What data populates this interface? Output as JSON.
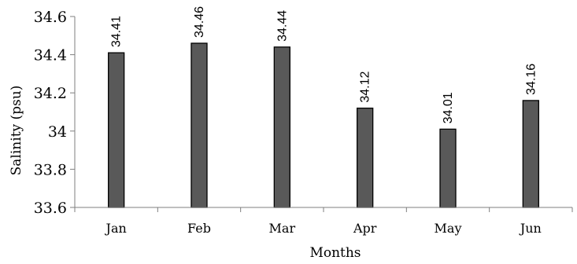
{
  "chart_data": {
    "type": "bar",
    "categories": [
      "Jan",
      "Feb",
      "Mar",
      "Apr",
      "May",
      "Jun"
    ],
    "values": [
      34.41,
      34.46,
      34.44,
      34.12,
      34.01,
      34.16
    ],
    "data_labels": [
      "34.41",
      "34.46",
      "34.44",
      "34.12",
      "34.01",
      "34.16"
    ],
    "title": "",
    "xlabel": "Months",
    "ylabel": "Salinity (psu)",
    "ylim": [
      33.6,
      34.6
    ],
    "yticks": [
      {
        "value": 33.6,
        "label": "33.6"
      },
      {
        "value": 33.8,
        "label": "33.8"
      },
      {
        "value": 34.0,
        "label": "34"
      },
      {
        "value": 34.2,
        "label": "34.2"
      },
      {
        "value": 34.4,
        "label": "34.4"
      },
      {
        "value": 34.6,
        "label": "34.6"
      }
    ],
    "grid": false,
    "legend": "none",
    "bar_color": "#595959"
  }
}
